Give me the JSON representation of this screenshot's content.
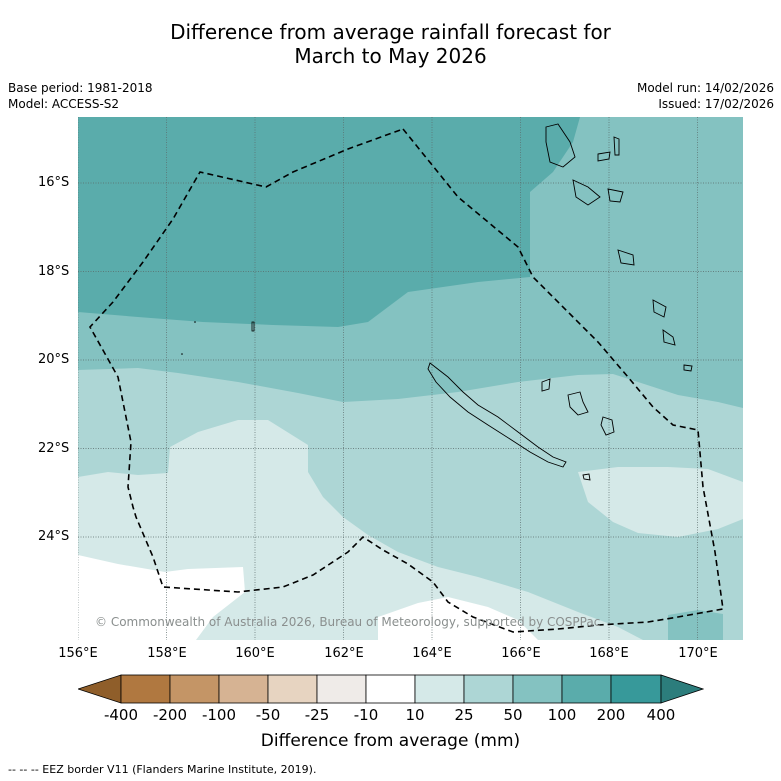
{
  "title": {
    "line1": "Difference from average rainfall forecast for",
    "line2": "March to May 2026"
  },
  "info": {
    "base_period": "Base period: 1981-2018",
    "model": "Model: ACCESS-S2",
    "model_run": "Model run: 14/02/2026",
    "issued": "Issued: 17/02/2026"
  },
  "map": {
    "lat_labels": [
      "16°S",
      "18°S",
      "20°S",
      "22°S",
      "24°S"
    ],
    "lon_labels": [
      "156°E",
      "158°E",
      "160°E",
      "162°E",
      "164°E",
      "166°E",
      "168°E",
      "170°E"
    ],
    "copyright": "© Commonwealth of Australia 2026, Bureau of Meteorology, supported by COSPPac"
  },
  "legend": {
    "title": "Difference from average (mm)",
    "tick_labels": [
      "-400",
      "-200",
      "-100",
      "-50",
      "-25",
      "-10",
      "10",
      "25",
      "50",
      "100",
      "200",
      "400"
    ],
    "colors": [
      "#8f5e2a",
      "#b07840",
      "#c49566",
      "#d6b393",
      "#e7d4c1",
      "#efebe8",
      "#ffffff",
      "#d5e9e8",
      "#add6d5",
      "#84c2c1",
      "#5aacab",
      "#37999a",
      "#2c7d7c"
    ]
  },
  "footer": "--  --  -- EEZ border V11 (Flanders Marine Institute, 2019)."
}
